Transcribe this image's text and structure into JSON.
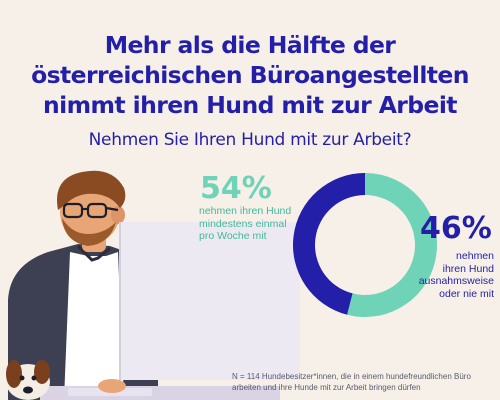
{
  "header": {
    "title_lines": [
      "Mehr als die Hälfte der",
      "österreichischen Büroangestellten",
      "nimmt ihren Hund mit zur Arbeit"
    ],
    "question": "Nehmen Sie Ihren Hund mit zur Arbeit?"
  },
  "chart_data": {
    "type": "pie",
    "donut": true,
    "title": "Nehmen Sie Ihren Hund mit zur Arbeit?",
    "slices": [
      {
        "value_label": "54%",
        "value": 54,
        "label_lines": [
          "nehmen ihren Hund",
          "mindestens einmal",
          "pro Woche mit"
        ],
        "color": "#6fd3b8"
      },
      {
        "value_label": "46%",
        "value": 46,
        "label_lines": [
          "nehmen",
          "ihren Hund",
          "ausnahmsweise",
          "oder nie mit"
        ],
        "color": "#241fa8"
      }
    ]
  },
  "footnote_lines": [
    "N = 114 Hundebesitzer*innen, die in einem hundefreundlichen Büro",
    "arbeiten und ihre Hunde mit zur Arbeit bringen dürfen"
  ],
  "colors": {
    "background": "#f6f0e8",
    "brand_blue": "#241fa8",
    "mint": "#6fd3b8",
    "skin": "#e8a677",
    "shirt": "#3d3f52"
  },
  "illustration": {
    "icons": [
      "person-at-desk-illustration",
      "monitor-icon",
      "dog-icon"
    ]
  }
}
